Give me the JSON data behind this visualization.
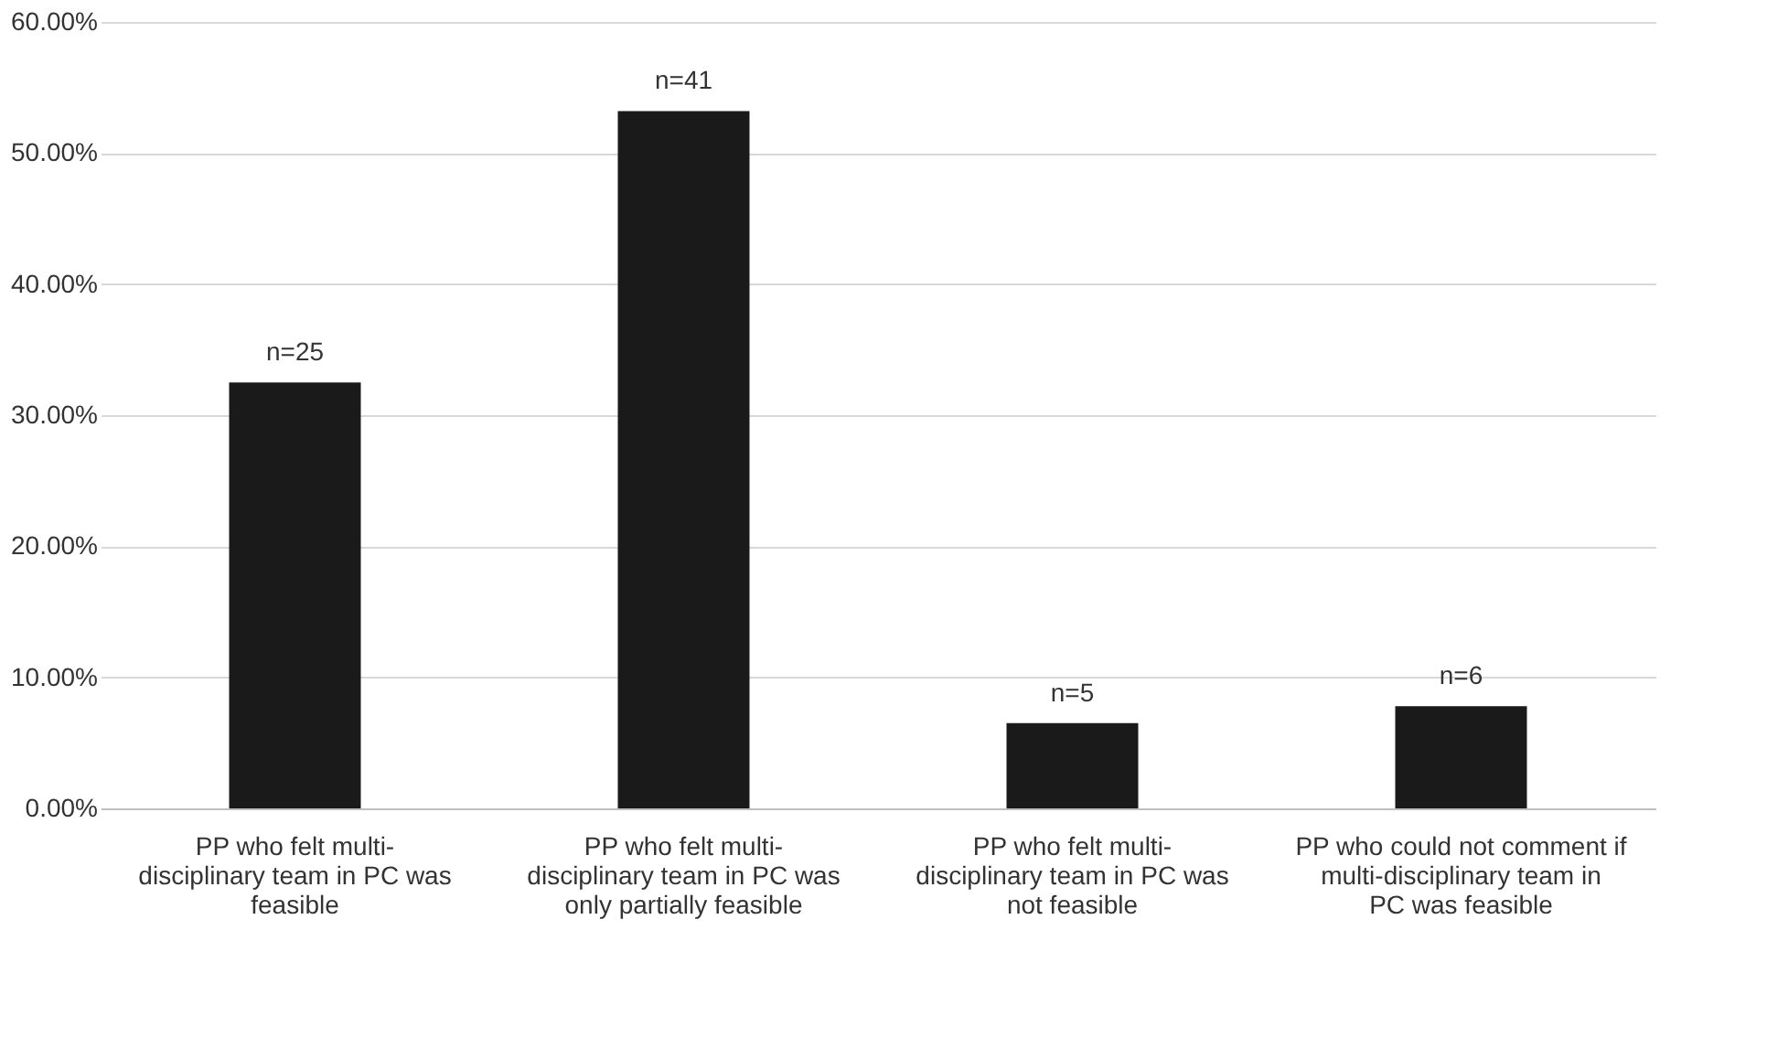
{
  "chart_data": {
    "type": "bar",
    "categories": [
      "PP who felt multi-disciplinary team in PC was  feasible",
      "PP who felt multi-disciplinary team in PC was only partially feasible",
      "PP who felt multi-disciplinary team in PC was not feasible",
      "PP who could not comment if multi-disciplinary team in PC was feasible"
    ],
    "values": [
      32.5,
      53.2,
      6.5,
      7.8
    ],
    "annotations": [
      {
        "text": "n=25",
        "x": "PP who felt multi-disciplinary team in PC was  feasible",
        "y": 32.5
      },
      {
        "text": "n=41",
        "x": "PP who felt multi-disciplinary team in PC was only partially feasible",
        "y": 53.2
      },
      {
        "text": "n=5",
        "x": "PP who felt multi-disciplinary team in PC was not feasible",
        "y": 6.5
      },
      {
        "text": "n=6",
        "x": "PP who could not comment if multi-disciplinary team in PC was feasible",
        "y": 7.8
      }
    ],
    "color": "#1a1a1a",
    "ylim": [
      0,
      60
    ],
    "yticks": [
      {
        "value": 0,
        "label": "0.00%"
      },
      {
        "value": 10,
        "label": "10.00%"
      },
      {
        "value": 20,
        "label": "20.00%"
      },
      {
        "value": 30,
        "label": "30.00%"
      },
      {
        "value": 40,
        "label": "40.00%"
      },
      {
        "value": 50,
        "label": "50.00%"
      },
      {
        "value": 60,
        "label": "60.00%"
      }
    ],
    "grid": "y"
  }
}
